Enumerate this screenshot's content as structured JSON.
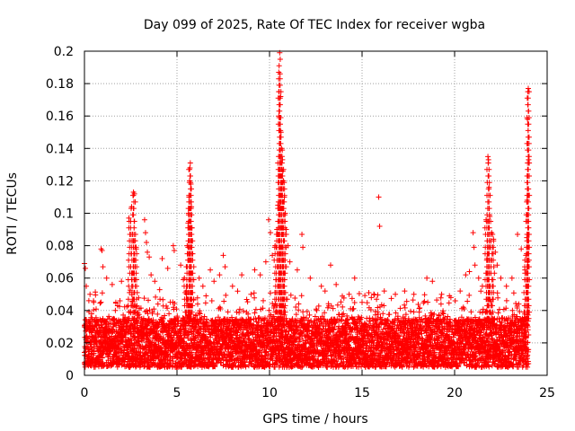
{
  "chart_data": {
    "type": "scatter",
    "title": "Day 099 of 2025, Rate Of TEC Index for receiver wgba",
    "xlabel": "GPS time / hours",
    "ylabel": "ROTI / TECUs",
    "xlim": [
      0,
      25
    ],
    "ylim": [
      0,
      0.2
    ],
    "x_ticks": [
      0,
      5,
      10,
      15,
      20,
      25
    ],
    "x_tick_labels": [
      "0",
      "5",
      "10",
      "15",
      "20",
      "25"
    ],
    "y_ticks": [
      0,
      0.02,
      0.04,
      0.06,
      0.08,
      0.1,
      0.12,
      0.14,
      0.16,
      0.18,
      0.2
    ],
    "y_tick_labels": [
      "0",
      "0.02",
      "0.04",
      "0.06",
      "0.08",
      "0.1",
      "0.12",
      "0.14",
      "0.16",
      "0.18",
      "0.2"
    ],
    "grid": true,
    "marker": "+",
    "color": "#ff0000",
    "background_band": {
      "x_range": [
        0,
        24
      ],
      "baseline_range": [
        0.005,
        0.035
      ],
      "description": "dense ROTI samples across the whole day"
    },
    "series": [
      {
        "name": "ROTI",
        "points": [
          [
            0.0,
            0.069
          ],
          [
            0.05,
            0.066
          ],
          [
            0.1,
            0.055
          ],
          [
            0.3,
            0.05
          ],
          [
            0.5,
            0.045
          ],
          [
            0.9,
            0.078
          ],
          [
            0.95,
            0.077
          ],
          [
            1.0,
            0.067
          ],
          [
            1.2,
            0.06
          ],
          [
            1.5,
            0.056
          ],
          [
            2.0,
            0.058
          ],
          [
            2.4,
            0.097
          ],
          [
            2.55,
            0.104
          ],
          [
            2.65,
            0.113
          ],
          [
            2.7,
            0.112
          ],
          [
            2.6,
            0.087
          ],
          [
            2.75,
            0.083
          ],
          [
            2.8,
            0.078
          ],
          [
            3.25,
            0.096
          ],
          [
            3.3,
            0.088
          ],
          [
            3.35,
            0.082
          ],
          [
            3.4,
            0.076
          ],
          [
            3.5,
            0.073
          ],
          [
            3.6,
            0.062
          ],
          [
            3.8,
            0.058
          ],
          [
            4.2,
            0.072
          ],
          [
            4.5,
            0.066
          ],
          [
            4.8,
            0.08
          ],
          [
            4.85,
            0.077
          ],
          [
            5.2,
            0.068
          ],
          [
            5.4,
            0.06
          ],
          [
            5.5,
            0.052
          ],
          [
            5.55,
            0.08
          ],
          [
            5.6,
            0.094
          ],
          [
            5.62,
            0.1
          ],
          [
            5.65,
            0.11
          ],
          [
            5.68,
            0.12
          ],
          [
            5.7,
            0.128
          ],
          [
            5.72,
            0.131
          ],
          [
            5.75,
            0.118
          ],
          [
            5.78,
            0.104
          ],
          [
            5.8,
            0.091
          ],
          [
            5.85,
            0.075
          ],
          [
            6.2,
            0.06
          ],
          [
            6.4,
            0.055
          ],
          [
            6.8,
            0.065
          ],
          [
            7.0,
            0.058
          ],
          [
            7.3,
            0.062
          ],
          [
            7.5,
            0.074
          ],
          [
            7.6,
            0.067
          ],
          [
            8.0,
            0.055
          ],
          [
            8.5,
            0.062
          ],
          [
            9.0,
            0.05
          ],
          [
            9.2,
            0.065
          ],
          [
            9.5,
            0.062
          ],
          [
            9.8,
            0.07
          ],
          [
            9.95,
            0.096
          ],
          [
            10.05,
            0.088
          ],
          [
            10.15,
            0.074
          ],
          [
            10.3,
            0.08
          ],
          [
            10.4,
            0.09
          ],
          [
            10.45,
            0.105
          ],
          [
            10.5,
            0.16
          ],
          [
            10.52,
            0.175
          ],
          [
            10.55,
            0.199
          ],
          [
            10.57,
            0.186
          ],
          [
            10.6,
            0.172
          ],
          [
            10.62,
            0.15
          ],
          [
            10.65,
            0.14
          ],
          [
            10.7,
            0.133
          ],
          [
            10.72,
            0.126
          ],
          [
            10.75,
            0.12
          ],
          [
            10.8,
            0.11
          ],
          [
            10.85,
            0.1
          ],
          [
            10.9,
            0.09
          ],
          [
            11.0,
            0.08
          ],
          [
            11.1,
            0.07
          ],
          [
            11.5,
            0.065
          ],
          [
            11.75,
            0.087
          ],
          [
            11.8,
            0.079
          ],
          [
            12.2,
            0.06
          ],
          [
            12.8,
            0.055
          ],
          [
            13.0,
            0.052
          ],
          [
            13.3,
            0.068
          ],
          [
            13.6,
            0.056
          ],
          [
            14.3,
            0.05
          ],
          [
            14.6,
            0.06
          ],
          [
            15.0,
            0.045
          ],
          [
            15.5,
            0.048
          ],
          [
            15.9,
            0.11
          ],
          [
            15.95,
            0.092
          ],
          [
            16.2,
            0.052
          ],
          [
            16.8,
            0.05
          ],
          [
            17.3,
            0.052
          ],
          [
            17.8,
            0.05
          ],
          [
            18.5,
            0.06
          ],
          [
            18.8,
            0.058
          ],
          [
            19.3,
            0.05
          ],
          [
            19.8,
            0.048
          ],
          [
            20.3,
            0.052
          ],
          [
            20.6,
            0.062
          ],
          [
            20.8,
            0.064
          ],
          [
            21.0,
            0.088
          ],
          [
            21.05,
            0.079
          ],
          [
            21.1,
            0.068
          ],
          [
            21.3,
            0.06
          ],
          [
            21.5,
            0.055
          ],
          [
            21.7,
            0.096
          ],
          [
            21.75,
            0.072
          ],
          [
            21.8,
            0.135
          ],
          [
            21.83,
            0.133
          ],
          [
            21.86,
            0.116
          ],
          [
            21.9,
            0.098
          ],
          [
            22.0,
            0.088
          ],
          [
            22.1,
            0.084
          ],
          [
            22.2,
            0.076
          ],
          [
            22.3,
            0.068
          ],
          [
            22.5,
            0.06
          ],
          [
            22.8,
            0.055
          ],
          [
            23.1,
            0.06
          ],
          [
            23.4,
            0.087
          ],
          [
            23.6,
            0.078
          ],
          [
            23.8,
            0.065
          ],
          [
            23.85,
            0.074
          ],
          [
            23.9,
            0.085
          ],
          [
            23.92,
            0.108
          ],
          [
            23.94,
            0.158
          ],
          [
            23.96,
            0.175
          ],
          [
            23.98,
            0.177
          ],
          [
            24.0,
            0.133
          ],
          [
            23.95,
            0.07
          ]
        ]
      }
    ]
  }
}
